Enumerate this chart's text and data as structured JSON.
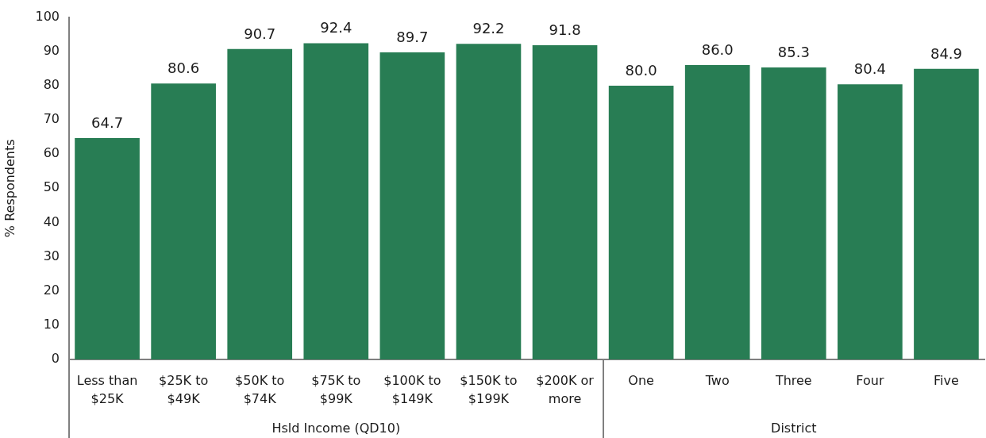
{
  "chart_data": {
    "type": "bar",
    "categories": [
      "Less than $25K",
      "$25K to $49K",
      "$50K to $74K",
      "$75K to $99K",
      "$100K to $149K",
      "$150K to $199K",
      "$200K or more",
      "One",
      "Two",
      "Three",
      "Four",
      "Five"
    ],
    "values": [
      64.7,
      80.6,
      90.7,
      92.4,
      89.7,
      92.2,
      91.8,
      80.0,
      86.0,
      85.3,
      80.4,
      84.9
    ],
    "value_labels": [
      "64.7",
      "80.6",
      "90.7",
      "92.4",
      "89.7",
      "92.2",
      "91.8",
      "80.0",
      "86.0",
      "85.3",
      "80.4",
      "84.9"
    ],
    "color": "#287d54",
    "ylabel": "% Respondents",
    "ylim": [
      0,
      100
    ],
    "yticks": [
      0,
      10,
      20,
      30,
      40,
      50,
      60,
      70,
      80,
      90,
      100
    ],
    "annotations": [
      "Hsld Income (QD10)",
      "District"
    ]
  }
}
